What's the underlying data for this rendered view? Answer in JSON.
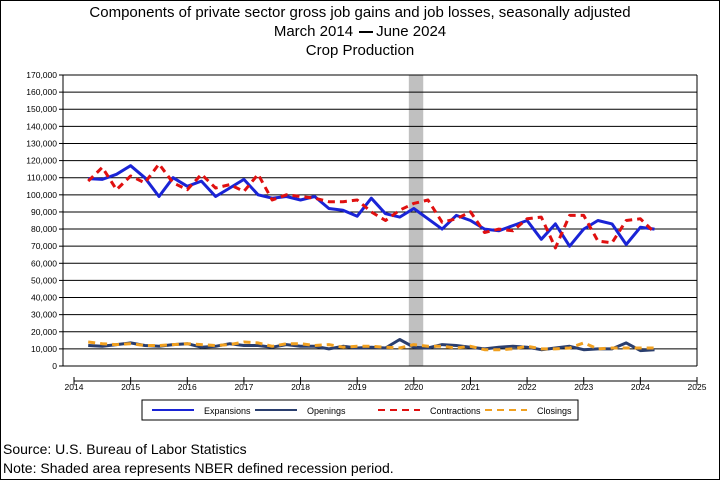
{
  "chart_data": {
    "type": "line",
    "title": "Components of private sector gross job gains and job losses, seasonally adjusted",
    "subtitle_start": "March 2014",
    "subtitle_end": "June 2024",
    "subtitle_sep": "—",
    "caption": "Crop Production",
    "ylim": [
      0,
      170000
    ],
    "xlim": [
      2014,
      2025
    ],
    "y_ticks": [
      "0",
      "10,000",
      "20,000",
      "30,000",
      "40,000",
      "50,000",
      "60,000",
      "70,000",
      "80,000",
      "90,000",
      "100,000",
      "110,000",
      "120,000",
      "130,000",
      "140,000",
      "150,000",
      "160,000",
      "170,000"
    ],
    "x_ticks": [
      "2014",
      "2015",
      "2016",
      "2017",
      "2018",
      "2019",
      "2020",
      "2021",
      "2022",
      "2023",
      "2024",
      "2025"
    ],
    "grid": "horizontal",
    "legend_position": "bottom",
    "recession": {
      "start": 2020.0,
      "end": 2020.25
    },
    "x": [
      2014.25,
      2014.5,
      2014.75,
      2015.0,
      2015.25,
      2015.5,
      2015.75,
      2016.0,
      2016.25,
      2016.5,
      2016.75,
      2017.0,
      2017.25,
      2017.5,
      2017.75,
      2018.0,
      2018.25,
      2018.5,
      2018.75,
      2019.0,
      2019.25,
      2019.5,
      2019.75,
      2020.0,
      2020.25,
      2020.5,
      2020.75,
      2021.0,
      2021.25,
      2021.5,
      2021.75,
      2022.0,
      2022.25,
      2022.5,
      2022.75,
      2023.0,
      2023.25,
      2023.5,
      2023.75,
      2024.0,
      2024.25
    ],
    "series": [
      {
        "name": "Expansions",
        "color": "#1a24d6",
        "dash": "solid",
        "width": 3,
        "values": [
          109500,
          109000,
          112000,
          117000,
          110000,
          99000,
          110000,
          105000,
          108000,
          99000,
          104000,
          109000,
          100000,
          98000,
          99000,
          97000,
          99000,
          92000,
          91000,
          87500,
          98000,
          89000,
          87000,
          92000,
          86000,
          80000,
          88000,
          85000,
          80000,
          79000,
          82000,
          85000,
          74000,
          83000,
          70000,
          80000,
          85000,
          83000,
          71000,
          81000,
          80000
        ]
      },
      {
        "name": "Openings",
        "color": "#2a3e6e",
        "dash": "solid",
        "width": 3,
        "values": [
          12000,
          11500,
          12500,
          13500,
          12000,
          11500,
          12500,
          13000,
          11000,
          11500,
          13000,
          12000,
          12000,
          11000,
          12500,
          11500,
          11500,
          10000,
          11500,
          10500,
          11000,
          10500,
          15500,
          11000,
          10500,
          12500,
          12000,
          11000,
          10000,
          11000,
          11500,
          11000,
          9500,
          10500,
          11500,
          9500,
          10000,
          10000,
          13500,
          9000,
          9500
        ]
      },
      {
        "name": "Contractions",
        "color": "#e01010",
        "dash": "dashed",
        "width": 3,
        "values": [
          108000,
          116000,
          103000,
          111000,
          107000,
          118000,
          107000,
          103000,
          112000,
          104000,
          106000,
          102000,
          112000,
          97000,
          100000,
          99000,
          98000,
          96000,
          96000,
          97000,
          90000,
          85000,
          91000,
          95000,
          97000,
          84000,
          86000,
          90000,
          78000,
          80000,
          79000,
          86000,
          87000,
          69000,
          88000,
          88000,
          73000,
          72000,
          85000,
          86000,
          78000
        ]
      },
      {
        "name": "Closings",
        "color": "#f0a020",
        "dash": "dashed",
        "width": 3,
        "values": [
          14000,
          13000,
          12500,
          13000,
          12000,
          12000,
          12500,
          13000,
          12500,
          12000,
          12500,
          14000,
          13500,
          11500,
          13000,
          13000,
          12000,
          12500,
          11000,
          11500,
          11500,
          11000,
          10500,
          12500,
          11500,
          11500,
          10500,
          11500,
          9500,
          9500,
          10000,
          11500,
          10000,
          10000,
          10500,
          13500,
          10000,
          10500,
          10500,
          10500,
          10500
        ]
      }
    ]
  },
  "footer": {
    "source": "Source: U.S. Bureau of Labor Statistics",
    "note": "Note: Shaded area represents NBER defined recession period."
  }
}
